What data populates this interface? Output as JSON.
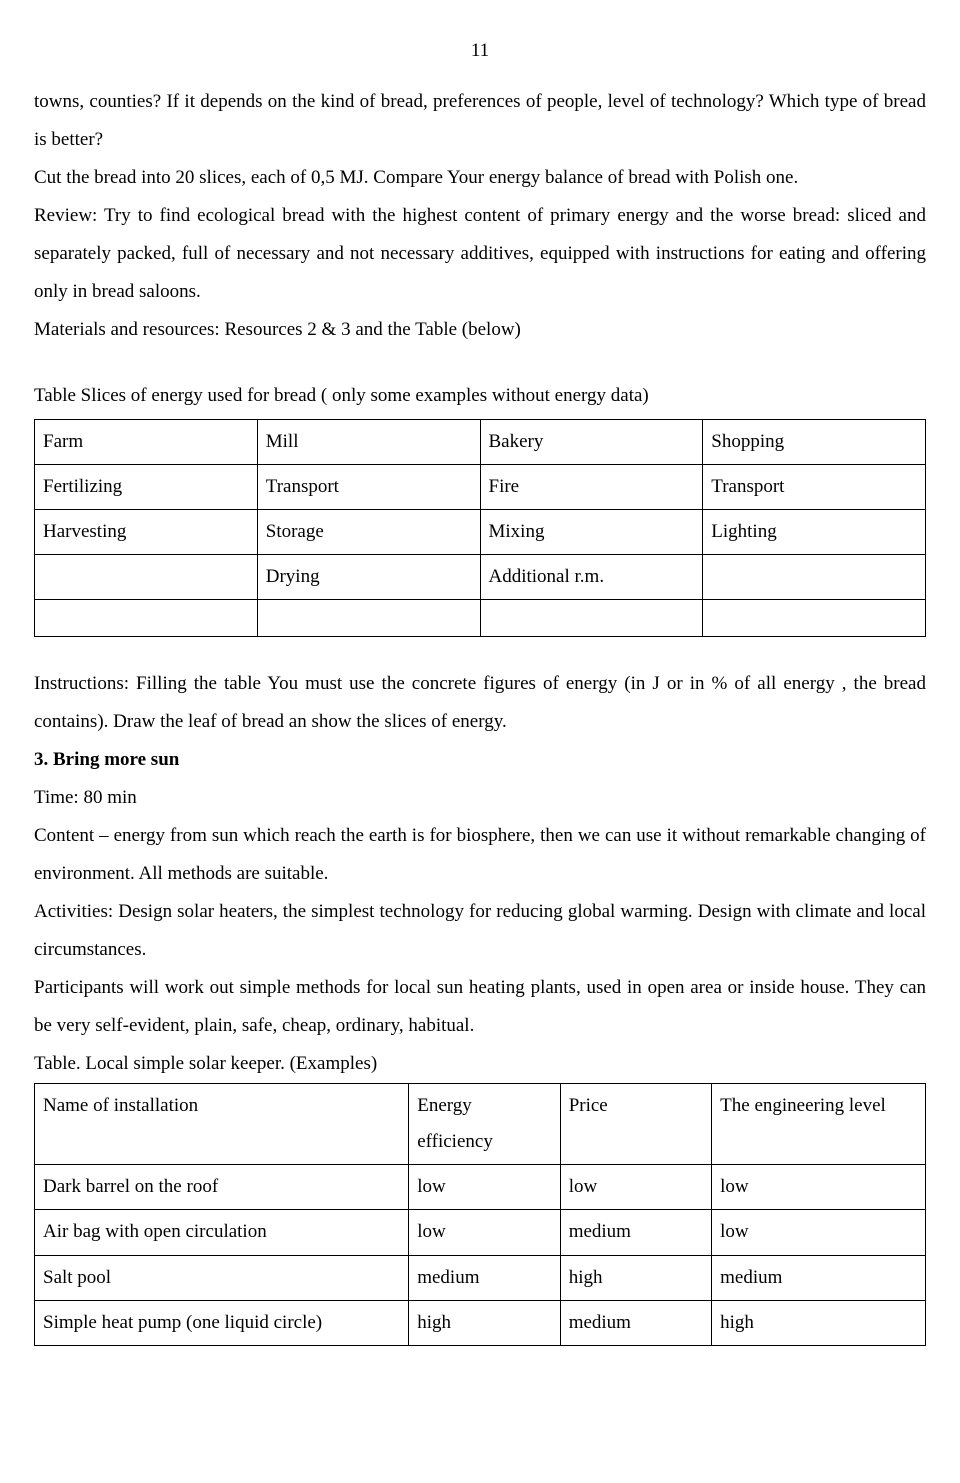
{
  "page_number": "11",
  "para1": "towns, counties? If it depends on the kind of bread, preferences of people, level of technology? Which type of bread  is better?",
  "para2": "Cut the bread into 20 slices, each of 0,5 MJ. Compare Your energy balance of bread with Polish one.",
  "para3": "Review: Try to find ecological bread with the highest content of primary energy and the worse bread: sliced and separately packed, full of necessary and not necessary additives, equipped with instructions for eating and offering only in bread saloons.",
  "para4": "Materials and resources: Resources 2 & 3 and the Table (below)",
  "table1_caption": "Table  Slices of energy used for bread ( only some examples without energy data)",
  "table1": {
    "rows": [
      [
        "Farm",
        "Mill",
        "Bakery",
        "Shopping"
      ],
      [
        "Fertilizing",
        "Transport",
        "Fire",
        "Transport"
      ],
      [
        "Harvesting",
        "Storage",
        "Mixing",
        "Lighting"
      ],
      [
        "",
        "Drying",
        "Additional r.m.",
        ""
      ],
      [
        "",
        "",
        "",
        ""
      ]
    ]
  },
  "para5": "Instructions: Filling the table You must use the concrete figures of energy (in J or in % of all energy , the bread contains). Draw the leaf of bread an show the slices of energy.",
  "heading3": "3. Bring more sun",
  "time": "Time: 80 min",
  "para6": "Content – energy from sun which reach the earth is for biosphere, then we can use it without remarkable changing of environment. All methods are suitable.",
  "para7": "Activities: Design solar heaters, the simplest technology for reducing global warming. Design with climate and local circumstances.",
  "para8": "Participants will work out simple methods for local sun heating plants, used in open area or inside house. They can be very self-evident, plain,  safe, cheap, ordinary, habitual.",
  "table2_caption": "Table. Local simple solar keeper. (Examples)",
  "table2": {
    "rows": [
      [
        "Name of installation",
        "Energy efficiency",
        "Price",
        "The engineering level"
      ],
      [
        "Dark barrel on the roof",
        "low",
        "low",
        "low"
      ],
      [
        "Air bag with open circulation",
        "low",
        "medium",
        "low"
      ],
      [
        "Salt pool",
        "medium",
        "high",
        "medium"
      ],
      [
        "Simple heat pump (one liquid circle)",
        "high",
        "medium",
        "high"
      ]
    ]
  }
}
